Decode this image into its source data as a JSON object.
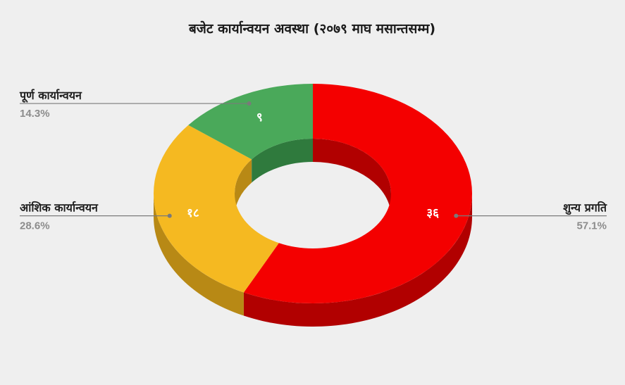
{
  "chart_data": {
    "type": "pie",
    "title": "बजेट कार्यान्वयन अवस्था (२०७९ माघ मसान्तसम्म)",
    "donut": true,
    "style": "3d",
    "legend": "callout-labels",
    "slices": [
      {
        "name": "शुन्य प्रगति",
        "value": 36,
        "value_label": "३६",
        "percent_label": "57.1%",
        "color": "#f40000",
        "side_color": "#b10000"
      },
      {
        "name": "आंशिक कार्यान्वयन",
        "value": 18,
        "value_label": "१८",
        "percent_label": "28.6%",
        "color": "#f5b921",
        "side_color": "#b88915"
      },
      {
        "name": "पूर्ण कार्यान्वयन",
        "value": 9,
        "value_label": "९",
        "percent_label": "14.3%",
        "color": "#4aa95a",
        "side_color": "#2f7a3d"
      }
    ]
  }
}
